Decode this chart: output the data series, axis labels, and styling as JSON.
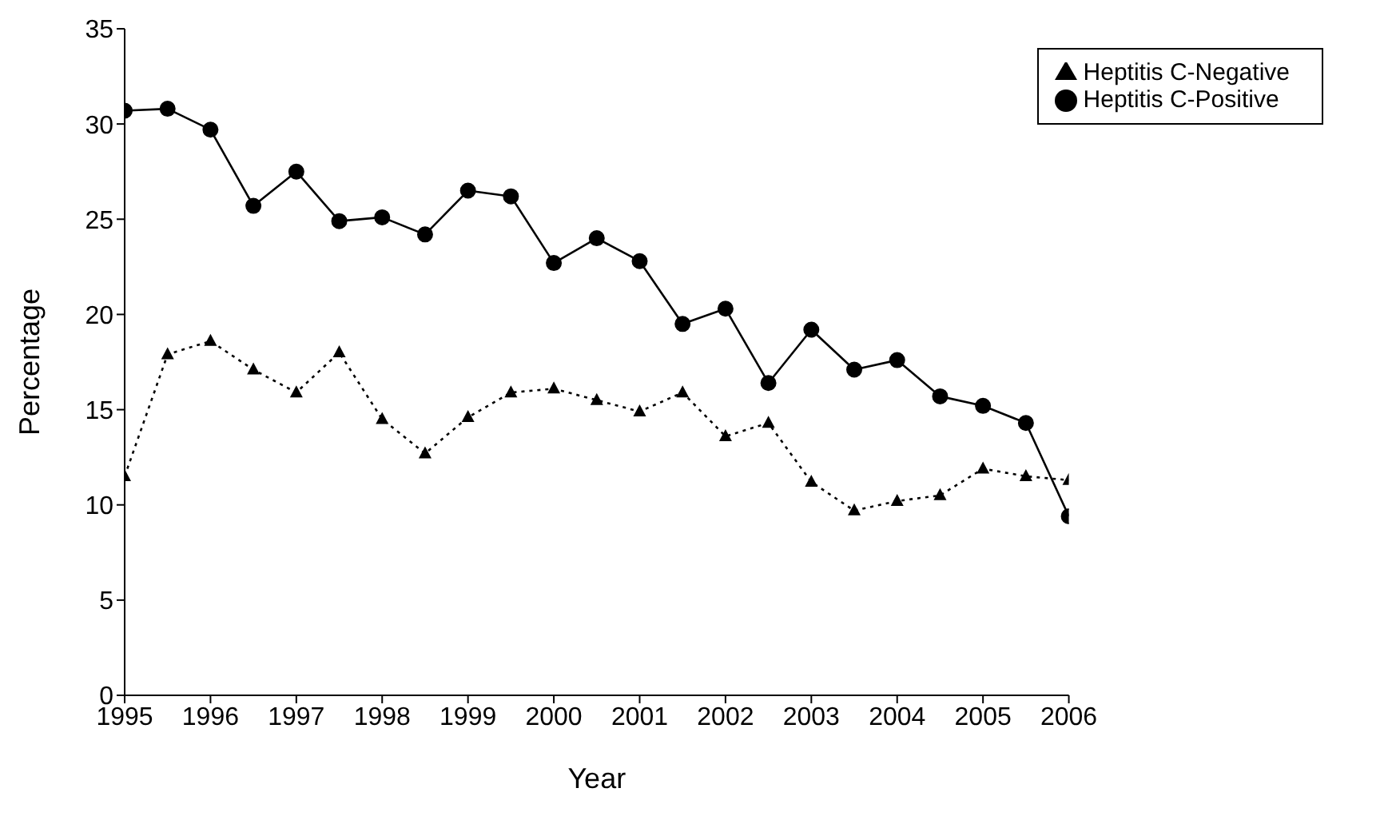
{
  "chart_data": {
    "type": "line",
    "xlabel": "Year",
    "ylabel": "Percentage",
    "x": [
      1995,
      1995.5,
      1996,
      1996.5,
      1997,
      1997.5,
      1998,
      1998.5,
      1999,
      1999.5,
      2000,
      2000.5,
      2001,
      2001.5,
      2002,
      2002.5,
      2003,
      2003.5,
      2004,
      2004.5,
      2005,
      2005.5,
      2006
    ],
    "series": [
      {
        "name": "Heptitis C-Positive",
        "color": "#000000",
        "marker": "circle",
        "line_style": "solid",
        "values": [
          30.7,
          30.8,
          29.7,
          25.7,
          27.5,
          24.9,
          25.1,
          24.2,
          26.5,
          26.2,
          22.7,
          24.0,
          22.8,
          19.5,
          20.3,
          16.4,
          19.2,
          17.1,
          17.6,
          15.7,
          15.2,
          14.3,
          9.4
        ]
      },
      {
        "name": "Heptitis C-Negative",
        "color": "#000000",
        "marker": "triangle",
        "line_style": "dotted",
        "values": [
          11.5,
          17.9,
          18.6,
          17.1,
          15.9,
          18.0,
          14.5,
          12.7,
          14.6,
          15.9,
          16.1,
          15.5,
          14.9,
          15.9,
          13.6,
          14.3,
          11.2,
          9.7,
          10.2,
          10.5,
          11.9,
          11.5,
          11.3
        ]
      }
    ],
    "xlim": [
      1995,
      2006
    ],
    "xticks": [
      1995,
      1996,
      1997,
      1998,
      1999,
      2000,
      2001,
      2002,
      2003,
      2004,
      2005,
      2006
    ],
    "ylim": [
      0,
      35
    ],
    "yticks": [
      0,
      5,
      10,
      15,
      20,
      25,
      30,
      35
    ],
    "grid": false,
    "legend": "top right"
  }
}
